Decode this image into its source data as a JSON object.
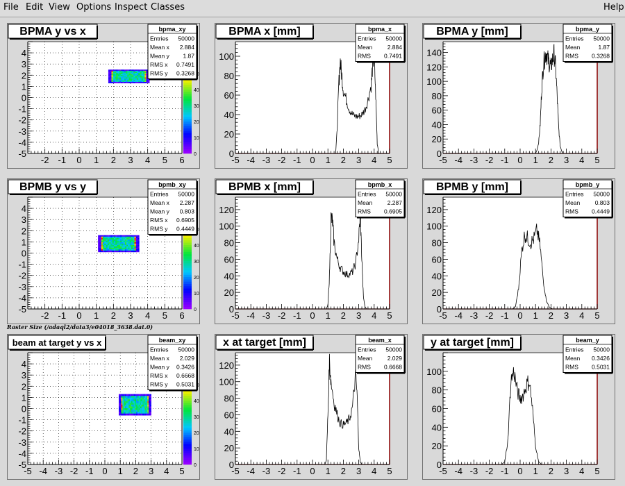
{
  "menu": {
    "file": "File",
    "edit": "Edit",
    "view": "View",
    "options": "Options",
    "inspect": "Inspect",
    "classes": "Classes",
    "help": "Help"
  },
  "caption": "Raster Size (/adaql2/data3/e04018_3638.dat.0)",
  "colors": {
    "pad_bg": "#ffffff",
    "frame_bg": "#d9d9d9",
    "hist_line": "#000000",
    "hist_frame_right": "#8b0000",
    "grid": "#000000"
  },
  "chart_data": [
    {
      "type": "heatmap",
      "title": "BPMA y vs x",
      "stats": {
        "name": "bpma_xy",
        "rows": [
          [
            "Entries",
            "50000"
          ],
          [
            "Mean x",
            "2.884"
          ],
          [
            "Mean y",
            "1.87"
          ],
          [
            "RMS x",
            "0.7491"
          ],
          [
            "RMS y",
            "0.3268"
          ]
        ]
      },
      "xlim": [
        -3,
        6
      ],
      "ylim": [
        -5,
        5
      ],
      "xticks": [
        -2,
        -1,
        0,
        1,
        2,
        3,
        4,
        5,
        6
      ],
      "yticks": [
        -5,
        -4,
        -3,
        -2,
        -1,
        0,
        1,
        2,
        3,
        4
      ],
      "zticks": [
        0,
        10,
        20,
        30,
        40,
        50
      ],
      "grid": true,
      "box": {
        "x": [
          1.7,
          4.1
        ],
        "y": [
          1.3,
          2.5
        ]
      }
    },
    {
      "type": "line",
      "title": "BPMA x [mm]",
      "stats": {
        "name": "bpma_x",
        "rows": [
          [
            "Entries",
            "50000"
          ],
          [
            "Mean",
            "2.884"
          ],
          [
            "RMS",
            "0.7491"
          ]
        ]
      },
      "xlim": [
        -5,
        5
      ],
      "ylim": [
        0,
        115
      ],
      "xticks": [
        -5,
        -4,
        -3,
        -2,
        -1,
        0,
        1,
        2,
        3,
        4,
        5
      ],
      "yticks": [
        0,
        20,
        40,
        60,
        80,
        100
      ],
      "x": [
        1.5,
        1.6,
        1.7,
        1.8,
        1.9,
        2.0,
        2.2,
        2.4,
        2.6,
        2.8,
        3.0,
        3.2,
        3.4,
        3.6,
        3.8,
        3.9,
        4.0,
        4.1,
        4.2,
        4.3
      ],
      "y": [
        0,
        25,
        70,
        95,
        80,
        65,
        55,
        45,
        40,
        38,
        38,
        40,
        45,
        55,
        70,
        90,
        100,
        60,
        10,
        0
      ]
    },
    {
      "type": "line",
      "title": "BPMA y [mm]",
      "stats": {
        "name": "bpma_y",
        "rows": [
          [
            "Entries",
            "50000"
          ],
          [
            "Mean",
            "1.87"
          ],
          [
            "RMS",
            "0.3268"
          ]
        ]
      },
      "xlim": [
        -5,
        5
      ],
      "ylim": [
        0,
        155
      ],
      "xticks": [
        -5,
        -4,
        -3,
        -2,
        -1,
        0,
        1,
        2,
        3,
        4,
        5
      ],
      "yticks": [
        0,
        20,
        40,
        60,
        80,
        100,
        120,
        140
      ],
      "x": [
        1.0,
        1.1,
        1.2,
        1.3,
        1.4,
        1.5,
        1.6,
        1.7,
        1.8,
        1.9,
        2.0,
        2.1,
        2.2,
        2.3,
        2.4,
        2.5,
        2.6,
        2.7,
        2.8
      ],
      "y": [
        0,
        5,
        15,
        40,
        90,
        120,
        135,
        140,
        130,
        125,
        120,
        130,
        138,
        120,
        80,
        35,
        10,
        3,
        0
      ]
    },
    {
      "type": "heatmap",
      "title": "BPMB y vs y",
      "stats": {
        "name": "bpmb_xy",
        "rows": [
          [
            "Entries",
            "50000"
          ],
          [
            "Mean x",
            "2.287"
          ],
          [
            "Mean y",
            "0.803"
          ],
          [
            "RMS x",
            "0.6905"
          ],
          [
            "RMS y",
            "0.4449"
          ]
        ]
      },
      "xlim": [
        -3,
        6
      ],
      "ylim": [
        -5,
        5
      ],
      "xticks": [
        -2,
        -1,
        0,
        1,
        2,
        3,
        4,
        5,
        6
      ],
      "yticks": [
        -5,
        -4,
        -3,
        -2,
        -1,
        0,
        1,
        2,
        3,
        4
      ],
      "zticks": [
        0,
        10,
        20,
        30,
        40,
        50
      ],
      "grid": true,
      "box": {
        "x": [
          1.1,
          3.5
        ],
        "y": [
          0.1,
          1.6
        ]
      }
    },
    {
      "type": "line",
      "title": "BPMB x [mm]",
      "stats": {
        "name": "bpmb_x",
        "rows": [
          [
            "Entries",
            "50000"
          ],
          [
            "Mean",
            "2.287"
          ],
          [
            "RMS",
            "0.6905"
          ]
        ]
      },
      "xlim": [
        -5,
        5
      ],
      "ylim": [
        0,
        135
      ],
      "xticks": [
        -5,
        -4,
        -3,
        -2,
        -1,
        0,
        1,
        2,
        3,
        4,
        5
      ],
      "yticks": [
        0,
        20,
        40,
        60,
        80,
        100,
        120
      ],
      "x": [
        0.9,
        1.0,
        1.1,
        1.2,
        1.3,
        1.4,
        1.6,
        1.8,
        2.0,
        2.2,
        2.4,
        2.6,
        2.8,
        3.0,
        3.1,
        3.2,
        3.3,
        3.4,
        3.5
      ],
      "y": [
        0,
        5,
        40,
        110,
        105,
        80,
        60,
        50,
        45,
        42,
        42,
        45,
        55,
        85,
        115,
        60,
        15,
        3,
        0
      ]
    },
    {
      "type": "line",
      "title": "BPMB y [mm]",
      "stats": {
        "name": "bpmb_y",
        "rows": [
          [
            "Entries",
            "50000"
          ],
          [
            "Mean",
            "0.803"
          ],
          [
            "RMS",
            "0.4449"
          ]
        ]
      },
      "xlim": [
        -5,
        5
      ],
      "ylim": [
        0,
        135
      ],
      "xticks": [
        -5,
        -4,
        -3,
        -2,
        -1,
        0,
        1,
        2,
        3,
        4,
        5
      ],
      "yticks": [
        0,
        20,
        40,
        60,
        80,
        100,
        120
      ],
      "x": [
        -0.5,
        -0.3,
        -0.1,
        0.1,
        0.3,
        0.5,
        0.7,
        0.9,
        1.1,
        1.3,
        1.5,
        1.7,
        1.9,
        2.1
      ],
      "y": [
        0,
        3,
        25,
        70,
        90,
        85,
        80,
        85,
        95,
        75,
        35,
        10,
        2,
        0
      ]
    },
    {
      "type": "heatmap",
      "title": "beam at target y vs x",
      "stats": {
        "name": "beam_xy",
        "rows": [
          [
            "Entries",
            "50000"
          ],
          [
            "Mean x",
            "2.029"
          ],
          [
            "Mean y",
            "0.3426"
          ],
          [
            "RMS x",
            "0.6668"
          ],
          [
            "RMS y",
            "0.5031"
          ]
        ]
      },
      "xlim": [
        -5,
        5
      ],
      "ylim": [
        -5,
        5
      ],
      "xticks": [
        -5,
        -4,
        -3,
        -2,
        -1,
        0,
        1,
        2,
        3,
        4,
        5
      ],
      "yticks": [
        -5,
        -4,
        -3,
        -2,
        -1,
        0,
        1,
        2,
        3,
        4
      ],
      "zticks": [
        0,
        10,
        20,
        30,
        40,
        50
      ],
      "grid": true,
      "box": {
        "x": [
          0.9,
          3.0
        ],
        "y": [
          -0.6,
          1.3
        ]
      }
    },
    {
      "type": "line",
      "title": "x at target [mm]",
      "stats": {
        "name": "beam_x",
        "rows": [
          [
            "Entries",
            "50000"
          ],
          [
            "Mean",
            "2.029"
          ],
          [
            "RMS",
            "0.6668"
          ]
        ]
      },
      "xlim": [
        -5,
        5
      ],
      "ylim": [
        0,
        135
      ],
      "xticks": [
        -5,
        -4,
        -3,
        -2,
        -1,
        0,
        1,
        2,
        3,
        4,
        5
      ],
      "yticks": [
        0,
        20,
        40,
        60,
        80,
        100,
        120
      ],
      "x": [
        0.8,
        0.9,
        1.0,
        1.1,
        1.2,
        1.4,
        1.6,
        1.8,
        2.0,
        2.2,
        2.4,
        2.6,
        2.8,
        2.9,
        3.0,
        3.1,
        3.2
      ],
      "y": [
        0,
        5,
        60,
        125,
        100,
        75,
        60,
        50,
        48,
        50,
        55,
        70,
        110,
        80,
        20,
        3,
        0
      ]
    },
    {
      "type": "line",
      "title": "y at target [mm]",
      "stats": {
        "name": "beam_y",
        "rows": [
          [
            "Entries",
            "50000"
          ],
          [
            "Mean",
            "0.3426"
          ],
          [
            "RMS",
            "0.5031"
          ]
        ]
      },
      "xlim": [
        -5,
        5
      ],
      "ylim": [
        0,
        120
      ],
      "xticks": [
        -5,
        -4,
        -3,
        -2,
        -1,
        0,
        1,
        2,
        3,
        4,
        5
      ],
      "yticks": [
        0,
        20,
        40,
        60,
        80,
        100
      ],
      "x": [
        -1.2,
        -1.0,
        -0.8,
        -0.6,
        -0.4,
        -0.2,
        0.0,
        0.2,
        0.4,
        0.6,
        0.8,
        1.0,
        1.2,
        1.4
      ],
      "y": [
        0,
        3,
        25,
        90,
        100,
        80,
        70,
        75,
        85,
        90,
        60,
        20,
        3,
        0
      ]
    }
  ]
}
